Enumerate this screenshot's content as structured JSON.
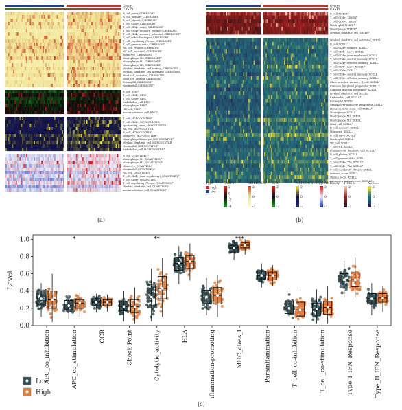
{
  "colors": {
    "group_low": "#1f3f9a",
    "group_high": "#d42a2a",
    "box_low": "#2f4b4f",
    "box_high": "#e07b39",
    "panel_bg": "#d8d8d8"
  },
  "heatmap_a": {
    "group_label": "Group",
    "casp8_label": "CASP8",
    "blocks": [
      {
        "name": "CIBERSORT",
        "scheme": "yellow-red",
        "rows": [
          "B_cell_naive_CIBERSORT",
          "B_cell_memory_CIBERSORT",
          "B_cell_plasma_CIBERSORT",
          "T_cell_CD8+_CIBERSORT",
          "T_cell_CD4+_naive_CIBERSORT",
          "T_cell_CD4+_memory_resting_CIBERSORT",
          "T_cell_CD4+_memory_activated_CIBERSORT*",
          "T_cell_follicular_helper_CIBERSORT",
          "T_cell_regulatory_(Tregs)_CIBERSORT",
          "T_cell_gamma_delta_CIBERSORT",
          "NK_cell_resting_CIBERSORT",
          "NK_cell_activated_CIBERSORT",
          "Monocyte_CIBERSORT",
          "Macrophage_M0_CIBERSORT*",
          "Macrophage_M1_CIBERSORT",
          "Macrophage_M2_CIBERSORT",
          "Myeloid_dendritic_cell_resting_CIBERSORT",
          "Myeloid_dendritic_cell_activated_CIBERSORT",
          "Mast_cell_activated_CIBERSORT",
          "Mast_cell_resting_CIBERSORT",
          "Eosinophil_CIBERSORT",
          "Neutrophil_CIBERSORT*"
        ]
      },
      {
        "name": "EPIC",
        "scheme": "green-red",
        "rows": [
          "B_cell_EPIC*",
          "T_cell_CD4+_EPIC",
          "T_cell_CD8+_EPIC",
          "Endothelial_cell_EPIC",
          "Macrophage_EPIC*",
          "NK_cell_EPIC*",
          "uncharacterized_cell_EPIC*"
        ]
      },
      {
        "name": "MCPCOUNTER",
        "scheme": "blue-yellow",
        "rows": [
          "T_cell_MCPCOUNTER*",
          "T_cell_CD8+_MCPCOUNTER",
          "cytotoxicity_score_MCPCOUNTER",
          "NK_cell_MCPCOUNTER",
          "B_cell_MCPCOUNTER*",
          "Monocyte_MCPCOUNTER*",
          "Macrophage/Monocyte_MCPCOUNTER*",
          "Myeloid_dendritic_cell_MCPCOUNTER",
          "Neutrophil_MCPCOUNTER*",
          "Endothelial_cell_MCPCOUNTER*"
        ]
      },
      {
        "name": "QUANTISEQ",
        "scheme": "blue-red",
        "rows": [
          "B_cell_QUANTISEQ*",
          "Macrophage_M1_QUANTISEQ*",
          "Macrophage_M2_QUANTISEQ*",
          "Monocyte_QUANTISEQ",
          "Neutrophil_QUANTISEQ*",
          "NK_cell_QUANTISEQ",
          "T_cell_CD4+_(non-regulatory)_QUANTISEQ*",
          "T_cell_CD8+_QUANTISEQ",
          "T_cell_regulatory_(Tregs)_QUANTISEQ*",
          "Myeloid_dendritic_cell_QUANTISEQ",
          "uncharacterized_cell_QUANTISEQ*"
        ]
      }
    ]
  },
  "heatmap_b": {
    "group_label": "Group",
    "casp8_label": "CASP8",
    "blocks": [
      {
        "name": "TIMER",
        "scheme": "dark-red",
        "rows": [
          "B_cell_TIMER*",
          "T_cell_CD4+_TIMER*",
          "T_cell_CD8+_TIMER*",
          "Neutrophil_TIMER*",
          "Macrophage_TIMER*",
          "Myeloid_dendritic_cell_TIMER*"
        ]
      },
      {
        "name": "XCELL",
        "scheme": "viridis",
        "rows": [
          "Myeloid_dendritic_cell_activated_XCELL",
          "B_cell_XCELL*",
          "T_cell_CD4+_memory_XCELL*",
          "T_cell_CD4+_naive_XCELL",
          "T_cell_CD4+_(non-regulatory)_XCELL",
          "T_cell_CD4+_central_memory_XCELL",
          "T_cell_CD4+_effector_memory_XCELL",
          "T_cell_CD8+_naive_XCELL*",
          "T_cell_CD8+_XCELL",
          "T_cell_CD4+_central_memory_XCELL",
          "T_cell_CD8+_effector_memory_XCELL",
          "Class-switched_memory_B_cell_XCELL*",
          "Common_lymphoid_progenitor_XCELL*",
          "Common_myeloid_progenitor_XCELL*",
          "Myeloid_dendritic_cell_XCELL",
          "Endothelial_cell_XCELL*",
          "Eosinophil_XCELL",
          "Granulocyte-monocyte_progenitor_XCELL*",
          "Hematopoietic_stem_cell_XCELL*",
          "Macrophage_XCELL",
          "Macrophage_M1_XCELL",
          "Macrophage_M2_XCELL",
          "Mast_cell_XCELL*",
          "B_cell_memory_XCELL",
          "Monocyte_XCELL",
          "B_cell_naive_XCELL*",
          "Neutrophil_XCELL",
          "NK_cell_XCELL",
          "T_cell_NK_XCELL",
          "Plasmacytoid_dendritic_cell_XCELL*",
          "B_cell_plasma_XCELL",
          "T_cell_gamma_delta_XCELL",
          "T_cell_CD4+_Th1_XCELL*",
          "T_cell_CD4+_Th2_XCELL*",
          "T_cell_regulatory_(Tregs)_XCELL",
          "immune_score_XCELL",
          "stroma_score_XCELL",
          "microenvironment_score_XCELL*"
        ]
      }
    ],
    "legend": {
      "type_title": "Type",
      "type_items": [
        "high",
        "low"
      ],
      "scales": [
        {
          "name": "CASP8",
          "ticks": [
            "2",
            "0",
            "-2",
            "-4"
          ]
        },
        {
          "name": "CIBERSORT",
          "ticks": [
            "2",
            "0",
            "-2"
          ]
        },
        {
          "name": "EPIC",
          "ticks": [
            "2",
            "0",
            "-2"
          ]
        },
        {
          "name": "MCPCOUNTER",
          "ticks": [
            "2",
            "0",
            "-2"
          ]
        },
        {
          "name": "QUANTISEQ",
          "ticks": [
            "2",
            "0",
            "-2"
          ]
        },
        {
          "name": "TIMER",
          "ticks": [
            "2",
            "0",
            "-2"
          ]
        },
        {
          "name": "XCELL",
          "ticks": [
            "2",
            "0",
            "-2"
          ]
        }
      ]
    }
  },
  "chart_data": {
    "type": "boxplot",
    "ylabel": "Level",
    "ylim": [
      0,
      1.05
    ],
    "yticks": [
      "0.0",
      "0.2",
      "0.4",
      "0.6",
      "0.8",
      "1.0"
    ],
    "categories": [
      "APC_co_inhibition",
      "APC_co_stimulation",
      "CCR",
      "Check-Point",
      "Cytolytic_activity",
      "HLA",
      "Inflammation-promoting",
      "MHC_class_I",
      "Parainflammation",
      "T_cell_co-inhibition",
      "T_cell_co-stimulation",
      "Type_I_IFN_Response",
      "Type_II_IFN_Response"
    ],
    "significance": [
      "",
      "*",
      "",
      "",
      "**",
      "",
      "",
      "***",
      "",
      "",
      "",
      "",
      ""
    ],
    "series": [
      {
        "name": "Low",
        "color": "#2f4b4f",
        "q1": [
          0.24,
          0.19,
          0.23,
          0.17,
          0.23,
          0.64,
          0.26,
          0.85,
          0.54,
          0.14,
          0.12,
          0.46,
          0.25
        ],
        "median": [
          0.31,
          0.23,
          0.27,
          0.22,
          0.33,
          0.72,
          0.33,
          0.9,
          0.58,
          0.2,
          0.19,
          0.53,
          0.31
        ],
        "q3": [
          0.38,
          0.29,
          0.31,
          0.28,
          0.47,
          0.79,
          0.41,
          0.93,
          0.63,
          0.28,
          0.26,
          0.6,
          0.37
        ],
        "wlo": [
          0.1,
          0.08,
          0.15,
          0.05,
          0.05,
          0.48,
          0.12,
          0.76,
          0.44,
          0.02,
          0.02,
          0.33,
          0.12
        ],
        "whi": [
          0.49,
          0.36,
          0.37,
          0.4,
          0.66,
          0.92,
          0.55,
          0.99,
          0.72,
          0.44,
          0.42,
          0.75,
          0.49
        ]
      },
      {
        "name": "High",
        "color": "#e07b39",
        "q1": [
          0.2,
          0.2,
          0.23,
          0.15,
          0.31,
          0.66,
          0.25,
          0.9,
          0.53,
          0.11,
          0.13,
          0.45,
          0.27
        ],
        "median": [
          0.3,
          0.26,
          0.27,
          0.22,
          0.43,
          0.74,
          0.35,
          0.93,
          0.58,
          0.18,
          0.21,
          0.53,
          0.32
        ],
        "q3": [
          0.4,
          0.3,
          0.3,
          0.3,
          0.57,
          0.81,
          0.44,
          0.96,
          0.62,
          0.27,
          0.28,
          0.61,
          0.37
        ],
        "wlo": [
          0.04,
          0.1,
          0.16,
          0.02,
          0.1,
          0.52,
          0.1,
          0.82,
          0.46,
          0.01,
          0.02,
          0.32,
          0.16
        ],
        "whi": [
          0.6,
          0.38,
          0.36,
          0.44,
          0.78,
          0.95,
          0.59,
          1.0,
          0.7,
          0.42,
          0.46,
          0.79,
          0.46
        ]
      }
    ],
    "legend": [
      "Low",
      "High"
    ],
    "legend_placement": "bottom-left"
  },
  "labels": {
    "a": "(a)",
    "b": "(b)",
    "c": "(c)"
  }
}
